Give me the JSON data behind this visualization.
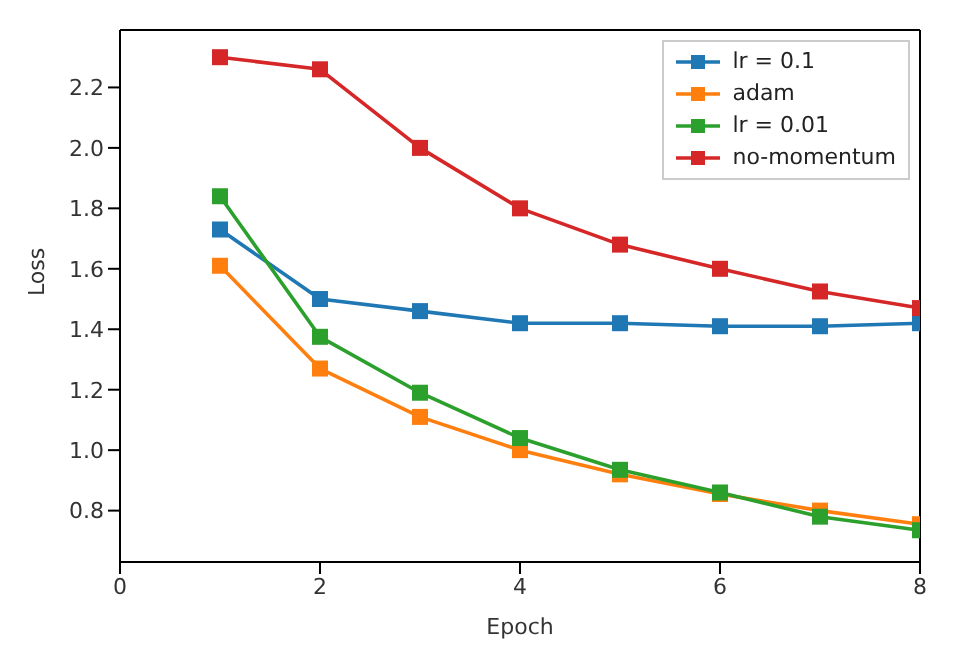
{
  "chart_data": {
    "type": "line",
    "xlabel": "Epoch",
    "ylabel": "Loss",
    "x": [
      1,
      2,
      3,
      4,
      5,
      6,
      7,
      8
    ],
    "series": [
      {
        "name": "lr = 0.1",
        "color": "#1f77b4",
        "values": [
          1.73,
          1.5,
          1.46,
          1.42,
          1.42,
          1.41,
          1.41,
          1.42
        ]
      },
      {
        "name": "adam",
        "color": "#ff7f0e",
        "values": [
          1.61,
          1.27,
          1.11,
          1.0,
          0.92,
          0.855,
          0.8,
          0.755
        ]
      },
      {
        "name": "lr = 0.01",
        "color": "#2ca02c",
        "values": [
          1.84,
          1.375,
          1.19,
          1.04,
          0.935,
          0.86,
          0.78,
          0.735
        ]
      },
      {
        "name": "no-momentum",
        "color": "#d62728",
        "values": [
          2.3,
          2.26,
          2.0,
          1.8,
          1.68,
          1.6,
          1.525,
          1.47
        ]
      }
    ],
    "xlim": [
      0,
      8
    ],
    "xticks": [
      0,
      2,
      4,
      6,
      8
    ],
    "ylim": [
      0.63,
      2.39
    ],
    "yticks": [
      {
        "value": 0.8,
        "label": "0.8"
      },
      {
        "value": 1,
        "label": "1.0"
      },
      {
        "value": 1.2,
        "label": "1.2"
      },
      {
        "value": 1.4,
        "label": "1.4"
      },
      {
        "value": 1.6,
        "label": "1.6"
      },
      {
        "value": 1.8,
        "label": "1.8"
      },
      {
        "value": 2,
        "label": "2.0"
      },
      {
        "value": 2.2,
        "label": "2.2"
      }
    ],
    "grid": false,
    "legend": "top right",
    "marker": "square",
    "line_style": "solid"
  }
}
